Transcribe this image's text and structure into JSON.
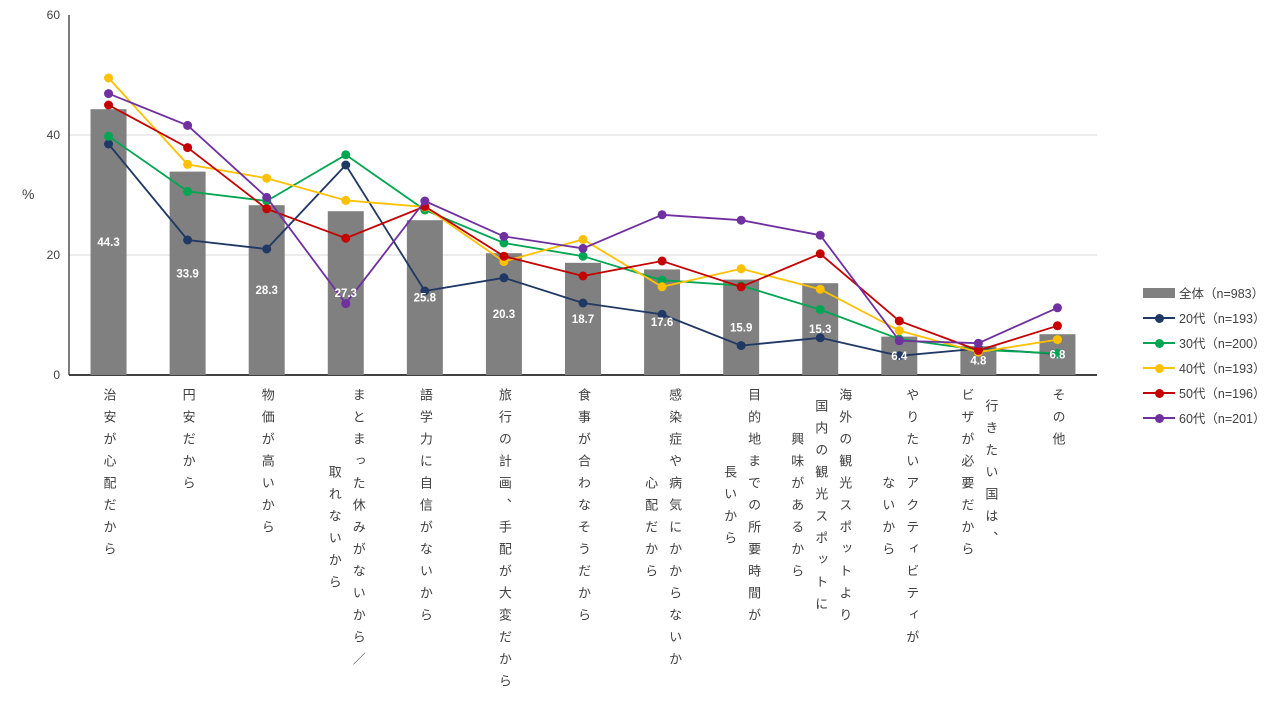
{
  "page": {
    "background": "#FFFFFF"
  },
  "chart_data": {
    "type": "bar+line",
    "title": "",
    "ylabel": "%",
    "ylim": [
      0,
      60
    ],
    "yticks": [
      0,
      20,
      40,
      60
    ],
    "grid": "horizontal gridlines at 20 and 40 only",
    "legend_position": "right",
    "axis_colors": {
      "axis_line": "#262626",
      "grid_line": "#D9D9D9",
      "tick_text": "#404040",
      "bar_label_text": "#FFFFFF"
    },
    "categories": [
      "治安が心配だから",
      "円安だから",
      "物価が高いから",
      "まとまった休みがないから／取れないから",
      "語学力に自信がないから",
      "旅行の計画、手配が大変だから",
      "食事が合わなそうだから",
      "感染症や病気にかからないか心配だから",
      "目的地までの所要時間が長いから",
      "海外の観光スポットより国内の観光スポットに興味があるから",
      "やりたいアクティビティがないから",
      "行きたい国は、ビザが必要だから",
      "その他"
    ],
    "category_label_lines": [
      [
        "治安が心配だから"
      ],
      [
        "円安だから"
      ],
      [
        "物価が高いから"
      ],
      [
        "まとまった休みがないから／",
        "取れないから"
      ],
      [
        "語学力に自信がないから"
      ],
      [
        "旅行の計画、手配が大変だから"
      ],
      [
        "食事が合わなそうだから"
      ],
      [
        "感染症や病気にかからないか",
        "心配だから"
      ],
      [
        "目的地までの所要時間が",
        "長いから"
      ],
      [
        "海外の観光スポットより",
        "国内の観光スポットに",
        "興味があるから"
      ],
      [
        "やりたいアクティビティが",
        "ないから"
      ],
      [
        "行きたい国は、",
        "ビザが必要だから"
      ],
      [
        "その他"
      ]
    ],
    "bar_series": {
      "name": "全体（n=983）",
      "color": "#808080",
      "values": [
        44.3,
        33.9,
        28.3,
        27.3,
        25.8,
        20.3,
        18.7,
        17.6,
        15.9,
        15.3,
        6.4,
        4.8,
        6.8
      ]
    },
    "line_series": [
      {
        "name": "20代（n=193）",
        "color": "#1F3864",
        "values": [
          38.5,
          22.5,
          21.0,
          35.0,
          14.0,
          16.2,
          12.0,
          10.1,
          4.9,
          6.2,
          3.2,
          4.4,
          3.5
        ]
      },
      {
        "name": "30代（n=200）",
        "color": "#00A651",
        "values": [
          39.8,
          30.6,
          29.0,
          36.7,
          27.5,
          22.0,
          19.8,
          15.8,
          14.9,
          10.9,
          6.0,
          4.2,
          3.6
        ]
      },
      {
        "name": "40代（n=193）",
        "color": "#FFC000",
        "values": [
          49.5,
          35.1,
          32.8,
          29.1,
          28.0,
          18.9,
          22.6,
          14.7,
          17.7,
          14.3,
          7.4,
          3.8,
          5.9
        ]
      },
      {
        "name": "50代（n=196）",
        "color": "#C40000",
        "values": [
          45.0,
          37.9,
          27.7,
          22.8,
          28.1,
          19.8,
          16.5,
          19.0,
          14.7,
          20.2,
          9.0,
          4.1,
          8.2
        ]
      },
      {
        "name": "60代（n=201）",
        "color": "#7030A0",
        "values": [
          46.9,
          41.6,
          29.6,
          11.9,
          29.0,
          23.1,
          21.1,
          26.7,
          25.8,
          23.3,
          5.7,
          5.3,
          11.2
        ]
      }
    ]
  }
}
